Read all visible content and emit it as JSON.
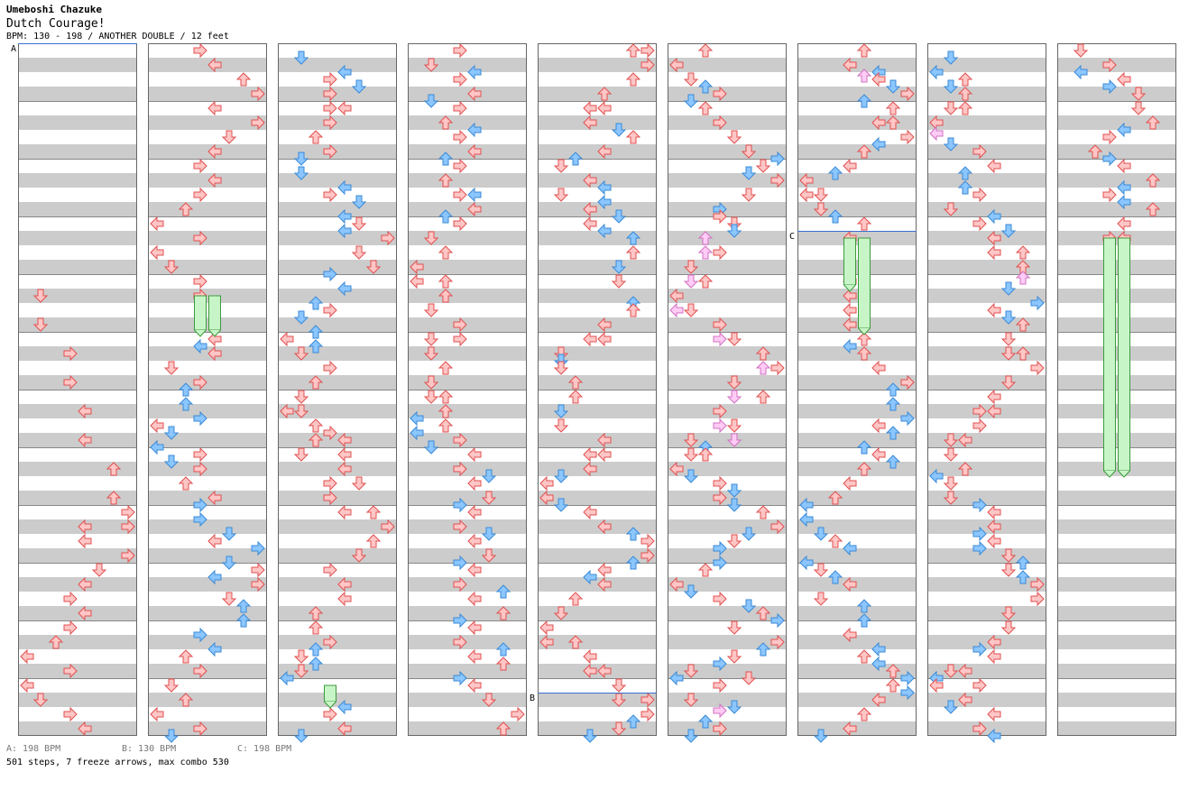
{
  "header": {
    "artist": "Umeboshi Chazuke",
    "title": "Dutch Courage!",
    "meta": "BPM: 130 - 198 / ANOTHER DOUBLE / 12 feet"
  },
  "bpm_changes": [
    {
      "marker": "A",
      "label": "A: 198 BPM"
    },
    {
      "marker": "B",
      "label": "B: 130 BPM"
    },
    {
      "marker": "C",
      "label": "C: 198 BPM"
    }
  ],
  "summary": "501 steps, 7 freeze arrows, max combo 530",
  "colors": {
    "background": "#ffffff",
    "stripe_light": "#ffffff",
    "stripe_dark": "#cccccc",
    "panel_border": "#666666",
    "red_arrow_fill": "#ffc6c6",
    "red_arrow_stroke": "#e05050",
    "blue_arrow_fill": "#8cc6ff",
    "blue_arrow_stroke": "#3a8ad6",
    "pink_arrow_fill": "#ffccf6",
    "pink_arrow_stroke": "#d070c0",
    "freeze_fill": "#c8f5c8",
    "freeze_stroke": "#3c9a3c",
    "marker_line": "#3a6fd0"
  }
}
